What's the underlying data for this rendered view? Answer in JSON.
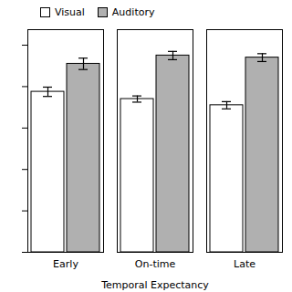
{
  "chart_data": {
    "type": "bar",
    "categories": [
      "Early",
      "On-time",
      "Late"
    ],
    "series": [
      {
        "name": "Visual",
        "color": "#ffffff",
        "values": [
          1.55,
          1.48,
          1.42
        ],
        "errors": [
          0.045,
          0.03,
          0.035
        ]
      },
      {
        "name": "Auditory",
        "color": "#b0b0b0",
        "values": [
          1.82,
          1.9,
          1.88
        ],
        "errors": [
          0.055,
          0.04,
          0.038
        ]
      }
    ],
    "xlabel": "Temporal Expectancy",
    "ylim": [
      0.0,
      2.15
    ],
    "yticks": [
      0,
      0.4,
      0.8,
      1.2,
      1.6,
      2.0
    ],
    "tick_labels": "x",
    "legend": "upper left",
    "grid": false
  }
}
